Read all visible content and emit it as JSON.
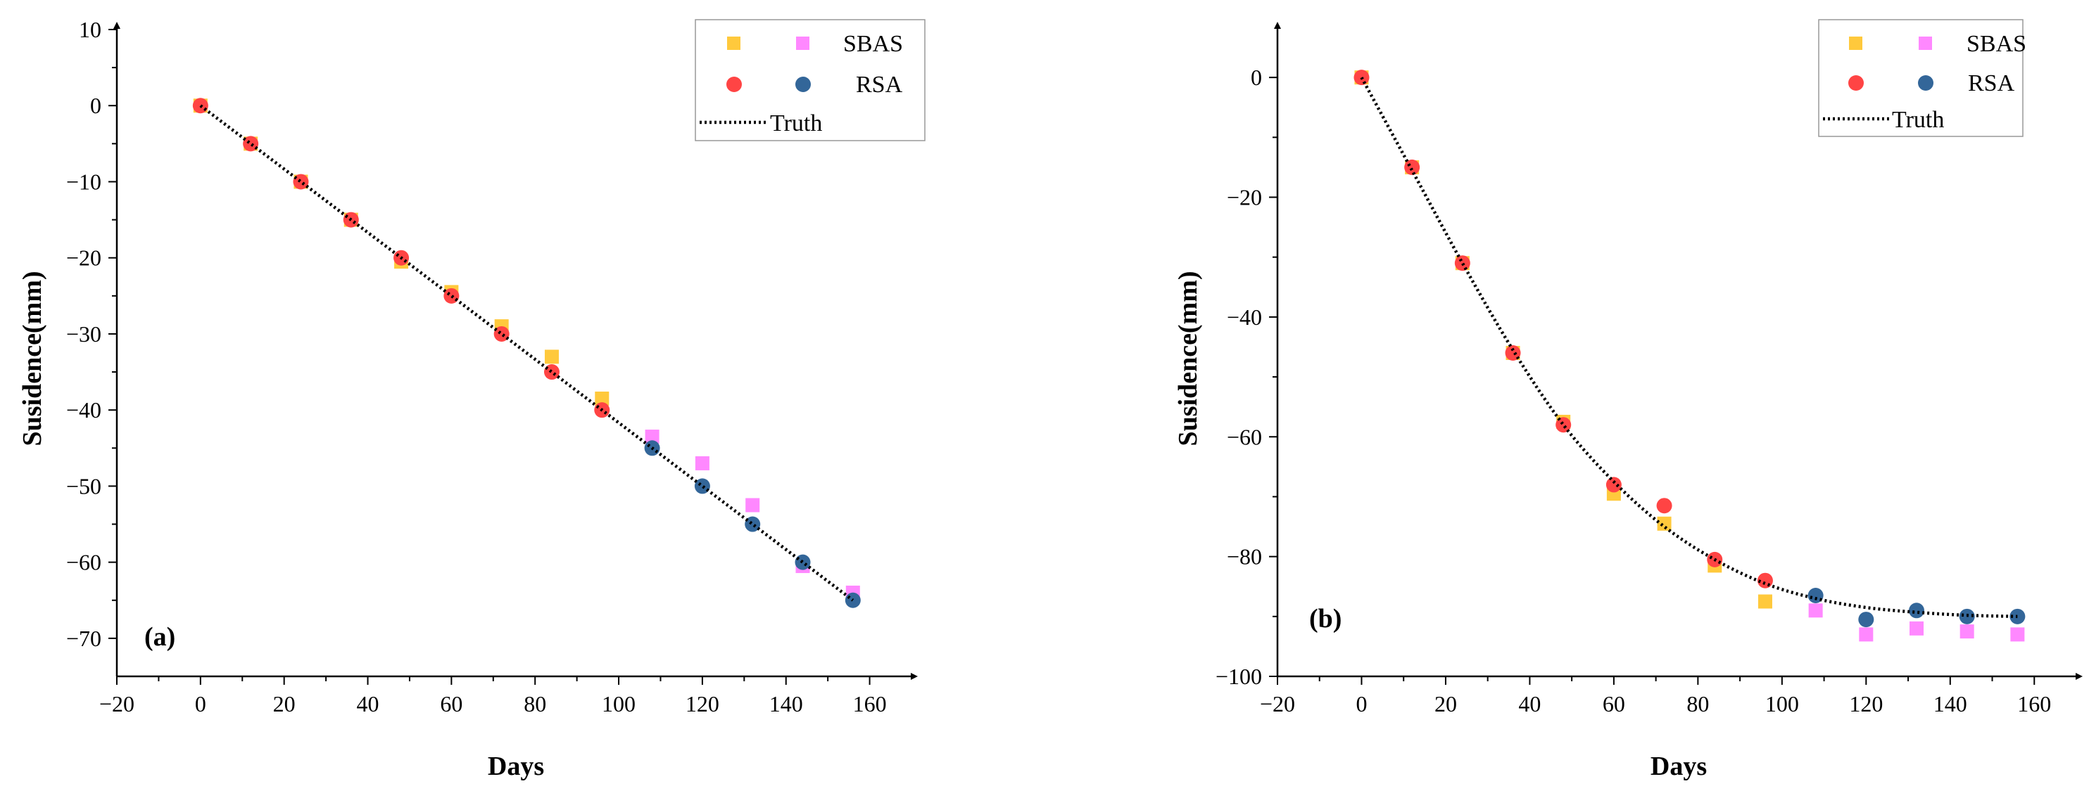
{
  "chart_data": [
    {
      "type": "scatter",
      "panel_label": "(a)",
      "xlabel": "Days",
      "ylabel": "Susidence(mm)",
      "xlim": [
        -20,
        170
      ],
      "ylim": [
        -75,
        10
      ],
      "xticks": [
        -20,
        0,
        20,
        40,
        60,
        80,
        100,
        120,
        140,
        160
      ],
      "yticks": [
        10,
        0,
        -10,
        -20,
        -30,
        -40,
        -50,
        -60,
        -70
      ],
      "xtick_labels": [
        "−20",
        "0",
        "20",
        "40",
        "60",
        "80",
        "100",
        "120",
        "140",
        "160"
      ],
      "ytick_labels": [
        "10",
        "0",
        "−10",
        "−20",
        "−30",
        "−40",
        "−50",
        "−60",
        "−70"
      ],
      "legend": {
        "sbas": "SBAS",
        "rsa": "RSA",
        "truth": "Truth",
        "position": "top-right"
      },
      "series": [
        {
          "name": "SBAS",
          "marker": "square",
          "x": [
            0,
            12,
            24,
            36,
            48,
            60,
            72,
            84,
            96,
            108,
            120,
            132,
            144,
            156
          ],
          "y": [
            0,
            -5,
            -10,
            -15,
            -20.5,
            -24.5,
            -29,
            -33,
            -38.5,
            -43.5,
            -47,
            -52.5,
            -60.5,
            -64
          ],
          "colors": [
            "#FFC93C",
            "#FFC93C",
            "#FFC93C",
            "#FFC93C",
            "#FFC93C",
            "#FFC93C",
            "#FFC93C",
            "#FFC93C",
            "#FFC93C",
            "#FF88FF",
            "#FF88FF",
            "#FF88FF",
            "#FF88FF",
            "#FF88FF"
          ]
        },
        {
          "name": "RSA",
          "marker": "circle",
          "x": [
            0,
            12,
            24,
            36,
            48,
            60,
            72,
            84,
            96,
            108,
            120,
            132,
            144,
            156
          ],
          "y": [
            0,
            -5,
            -10,
            -15,
            -20,
            -25,
            -30,
            -35,
            -40,
            -45,
            -50,
            -55,
            -60,
            -65
          ],
          "colors": [
            "#FF4444",
            "#FF4444",
            "#FF4444",
            "#FF4444",
            "#FF4444",
            "#FF4444",
            "#FF4444",
            "#FF4444",
            "#FF4444",
            "#336699",
            "#336699",
            "#336699",
            "#336699",
            "#336699"
          ]
        },
        {
          "name": "Truth",
          "marker": "dotted-line",
          "x": [
            0,
            156
          ],
          "y": [
            0,
            -65
          ]
        }
      ]
    },
    {
      "type": "scatter",
      "panel_label": "(b)",
      "xlabel": "Days",
      "ylabel": "Susidence(mm)",
      "xlim": [
        -20,
        170
      ],
      "ylim": [
        -100,
        8
      ],
      "xticks": [
        -20,
        0,
        20,
        40,
        60,
        80,
        100,
        120,
        140,
        160
      ],
      "yticks": [
        0,
        -20,
        -40,
        -60,
        -80,
        -100
      ],
      "xtick_labels": [
        "−20",
        "0",
        "20",
        "40",
        "60",
        "80",
        "100",
        "120",
        "140",
        "160"
      ],
      "ytick_labels": [
        "0",
        "−20",
        "−40",
        "−60",
        "−80",
        "−100"
      ],
      "legend": {
        "sbas": "SBAS",
        "rsa": "RSA",
        "truth": "Truth",
        "position": "top-right"
      },
      "series": [
        {
          "name": "SBAS",
          "marker": "square",
          "x": [
            0,
            12,
            24,
            36,
            48,
            60,
            72,
            84,
            96,
            108,
            120,
            132,
            144,
            156
          ],
          "y": [
            0,
            -15,
            -31,
            -46,
            -57.5,
            -69.5,
            -74.5,
            -81.5,
            -87.5,
            -89,
            -93,
            -92,
            -92.5,
            -93
          ],
          "colors": [
            "#FFC93C",
            "#FFC93C",
            "#FFC93C",
            "#FFC93C",
            "#FFC93C",
            "#FFC93C",
            "#FFC93C",
            "#FFC93C",
            "#FFC93C",
            "#FF88FF",
            "#FF88FF",
            "#FF88FF",
            "#FF88FF",
            "#FF88FF"
          ]
        },
        {
          "name": "RSA",
          "marker": "circle",
          "x": [
            0,
            12,
            24,
            36,
            48,
            60,
            72,
            84,
            96,
            108,
            120,
            132,
            144,
            156
          ],
          "y": [
            0,
            -15,
            -31,
            -46,
            -58,
            -68,
            -71.5,
            -80.5,
            -84,
            -86.5,
            -90.5,
            -89,
            -90,
            -90
          ],
          "colors": [
            "#FF4444",
            "#FF4444",
            "#FF4444",
            "#FF4444",
            "#FF4444",
            "#FF4444",
            "#FF4444",
            "#FF4444",
            "#FF4444",
            "#336699",
            "#336699",
            "#336699",
            "#336699",
            "#336699"
          ]
        },
        {
          "name": "Truth",
          "marker": "dotted-line",
          "x": [
            0,
            12,
            24,
            36,
            48,
            60,
            72,
            84,
            96,
            108,
            120,
            132,
            144,
            156
          ],
          "y": [
            0,
            -15.5,
            -31,
            -45.5,
            -58,
            -67.5,
            -75,
            -80.5,
            -84.5,
            -87,
            -88.5,
            -89.3,
            -89.8,
            -90
          ]
        }
      ]
    }
  ]
}
